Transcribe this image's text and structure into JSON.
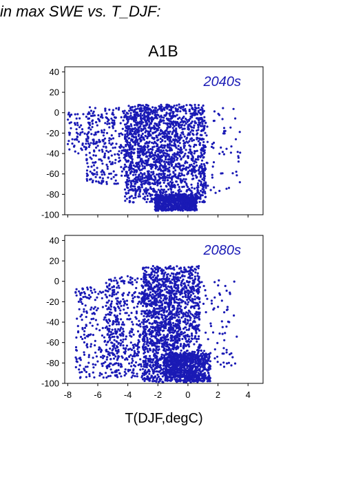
{
  "page_title": "in max SWE vs. T_DJF:",
  "scenario_label": "A1B",
  "xlabel": "T(DJF,degC)",
  "colors": {
    "points": "#1a1ab5",
    "frame": "#000000",
    "background": "#ffffff"
  },
  "chart_data": [
    {
      "type": "scatter",
      "panel_label": "2040s",
      "xlim": [
        -8.2,
        5
      ],
      "ylim": [
        -100,
        45
      ],
      "xticks": [
        -8,
        -6,
        -4,
        -2,
        0,
        2,
        4
      ],
      "yticks": [
        -100,
        -80,
        -60,
        -40,
        -20,
        0,
        20,
        40
      ],
      "show_x_tick_labels": false,
      "grid": false,
      "clusters": [
        {
          "x_range": [
            -6.8,
            -0.6
          ],
          "y_range": [
            -70,
            6
          ],
          "density": "dense"
        },
        {
          "x_range": [
            -4.2,
            1.2
          ],
          "y_range": [
            -88,
            8
          ],
          "density": "very dense"
        },
        {
          "x_range": [
            -2.2,
            0.6
          ],
          "y_range": [
            -96,
            -80
          ],
          "density": "dense"
        },
        {
          "x_range": [
            -8.0,
            -6.2
          ],
          "y_range": [
            -40,
            0
          ],
          "density": "sparse"
        },
        {
          "x_range": [
            0.8,
            3.5
          ],
          "y_range": [
            -80,
            5
          ],
          "density": "sparse"
        }
      ]
    },
    {
      "type": "scatter",
      "panel_label": "2080s",
      "xlim": [
        -8.2,
        5
      ],
      "ylim": [
        -100,
        45
      ],
      "xticks": [
        -8,
        -6,
        -4,
        -2,
        0,
        2,
        4
      ],
      "yticks": [
        -100,
        -80,
        -60,
        -40,
        -20,
        0,
        20,
        40
      ],
      "show_x_tick_labels": true,
      "grid": false,
      "clusters": [
        {
          "x_range": [
            -7.5,
            -4.5
          ],
          "y_range": [
            -95,
            -5
          ],
          "density": "medium"
        },
        {
          "x_range": [
            -5.5,
            -0.5
          ],
          "y_range": [
            -96,
            5
          ],
          "density": "dense"
        },
        {
          "x_range": [
            -3.0,
            0.8
          ],
          "y_range": [
            -99,
            15
          ],
          "density": "very dense"
        },
        {
          "x_range": [
            -1.5,
            1.5
          ],
          "y_range": [
            -98,
            -70
          ],
          "density": "dense"
        },
        {
          "x_range": [
            0.8,
            3.3
          ],
          "y_range": [
            -85,
            5
          ],
          "density": "sparse"
        }
      ]
    }
  ]
}
